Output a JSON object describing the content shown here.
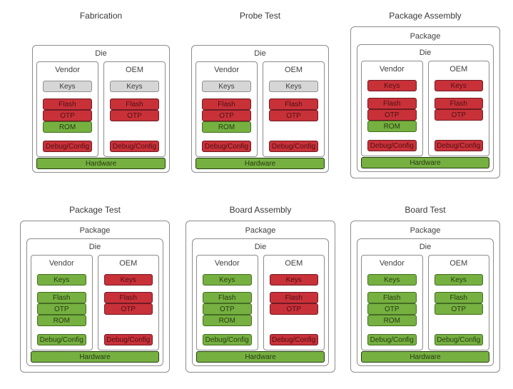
{
  "palette": {
    "red": "#c93139",
    "green": "#76b041",
    "gray": "#d6d6d6",
    "box_border": "#8c8c8c",
    "background": "#ffffff"
  },
  "diagrams": [
    {
      "title": "Fabrication",
      "die_label": "Die",
      "vendor": {
        "label": "Vendor",
        "cells": [
          {
            "key": "keys",
            "label": "Keys",
            "color": "gray"
          },
          {
            "key": "flash",
            "label": "Flash",
            "color": "red"
          },
          {
            "key": "otp",
            "label": "OTP",
            "color": "red"
          },
          {
            "key": "rom",
            "label": "ROM",
            "color": "green"
          },
          {
            "key": "debug",
            "label": "Debug/Config",
            "color": "red"
          }
        ]
      },
      "oem": {
        "label": "OEM",
        "cells": [
          {
            "key": "keys",
            "label": "Keys",
            "color": "gray"
          },
          {
            "key": "flash",
            "label": "Flash",
            "color": "red"
          },
          {
            "key": "otp",
            "label": "OTP",
            "color": "red"
          },
          {
            "key": "debug",
            "label": "Debug/Config",
            "color": "red"
          }
        ]
      },
      "hardware": {
        "label": "Hardware",
        "color": "green"
      }
    },
    {
      "title": "Probe Test",
      "die_label": "Die",
      "vendor": {
        "label": "Vendor",
        "cells": [
          {
            "key": "keys",
            "label": "Keys",
            "color": "gray"
          },
          {
            "key": "flash",
            "label": "Flash",
            "color": "red"
          },
          {
            "key": "otp",
            "label": "OTP",
            "color": "red"
          },
          {
            "key": "rom",
            "label": "ROM",
            "color": "green"
          },
          {
            "key": "debug",
            "label": "Debug/Config",
            "color": "red"
          }
        ]
      },
      "oem": {
        "label": "OEM",
        "cells": [
          {
            "key": "keys",
            "label": "Keys",
            "color": "gray"
          },
          {
            "key": "flash",
            "label": "Flash",
            "color": "red"
          },
          {
            "key": "otp",
            "label": "OTP",
            "color": "red"
          },
          {
            "key": "debug",
            "label": "Debug/Config",
            "color": "red"
          }
        ]
      },
      "hardware": {
        "label": "Hardware",
        "color": "green"
      }
    },
    {
      "title": "Package Assembly",
      "package_label": "Package",
      "die_label": "Die",
      "vendor": {
        "label": "Vendor",
        "cells": [
          {
            "key": "keys",
            "label": "Keys",
            "color": "red"
          },
          {
            "key": "flash",
            "label": "Flash",
            "color": "red"
          },
          {
            "key": "otp",
            "label": "OTP",
            "color": "red"
          },
          {
            "key": "rom",
            "label": "ROM",
            "color": "green"
          },
          {
            "key": "debug",
            "label": "Debug/Config",
            "color": "red"
          }
        ]
      },
      "oem": {
        "label": "OEM",
        "cells": [
          {
            "key": "keys",
            "label": "Keys",
            "color": "red"
          },
          {
            "key": "flash",
            "label": "Flash",
            "color": "red"
          },
          {
            "key": "otp",
            "label": "OTP",
            "color": "red"
          },
          {
            "key": "debug",
            "label": "Debug/Config",
            "color": "red"
          }
        ]
      },
      "hardware": {
        "label": "Hardware",
        "color": "green"
      }
    },
    {
      "title": "Package Test",
      "package_label": "Package",
      "die_label": "Die",
      "vendor": {
        "label": "Vendor",
        "cells": [
          {
            "key": "keys",
            "label": "Keys",
            "color": "green"
          },
          {
            "key": "flash",
            "label": "Flash",
            "color": "green"
          },
          {
            "key": "otp",
            "label": "OTP",
            "color": "green"
          },
          {
            "key": "rom",
            "label": "ROM",
            "color": "green"
          },
          {
            "key": "debug",
            "label": "Debug/Config",
            "color": "green"
          }
        ]
      },
      "oem": {
        "label": "OEM",
        "cells": [
          {
            "key": "keys",
            "label": "Keys",
            "color": "red"
          },
          {
            "key": "flash",
            "label": "Flash",
            "color": "red"
          },
          {
            "key": "otp",
            "label": "OTP",
            "color": "red"
          },
          {
            "key": "debug",
            "label": "Debug/Config",
            "color": "red"
          }
        ]
      },
      "hardware": {
        "label": "Hardware",
        "color": "green"
      }
    },
    {
      "title": "Board Assembly",
      "package_label": "Package",
      "die_label": "Die",
      "vendor": {
        "label": "Vendor",
        "cells": [
          {
            "key": "keys",
            "label": "Keys",
            "color": "green"
          },
          {
            "key": "flash",
            "label": "Flash",
            "color": "green"
          },
          {
            "key": "otp",
            "label": "OTP",
            "color": "green"
          },
          {
            "key": "rom",
            "label": "ROM",
            "color": "green"
          },
          {
            "key": "debug",
            "label": "Debug/Config",
            "color": "green"
          }
        ]
      },
      "oem": {
        "label": "OEM",
        "cells": [
          {
            "key": "keys",
            "label": "Keys",
            "color": "red"
          },
          {
            "key": "flash",
            "label": "Flash",
            "color": "red"
          },
          {
            "key": "otp",
            "label": "OTP",
            "color": "red"
          },
          {
            "key": "debug",
            "label": "Debug/Config",
            "color": "red"
          }
        ]
      },
      "hardware": {
        "label": "Hardware",
        "color": "green"
      }
    },
    {
      "title": "Board Test",
      "package_label": "Package",
      "die_label": "Die",
      "vendor": {
        "label": "Vendor",
        "cells": [
          {
            "key": "keys",
            "label": "Keys",
            "color": "green"
          },
          {
            "key": "flash",
            "label": "Flash",
            "color": "green"
          },
          {
            "key": "otp",
            "label": "OTP",
            "color": "green"
          },
          {
            "key": "rom",
            "label": "ROM",
            "color": "green"
          },
          {
            "key": "debug",
            "label": "Debug/Config",
            "color": "green"
          }
        ]
      },
      "oem": {
        "label": "OEM",
        "cells": [
          {
            "key": "keys",
            "label": "Keys",
            "color": "green"
          },
          {
            "key": "flash",
            "label": "Flash",
            "color": "green"
          },
          {
            "key": "otp",
            "label": "OTP",
            "color": "green"
          },
          {
            "key": "debug",
            "label": "Debug/Config",
            "color": "green"
          }
        ]
      },
      "hardware": {
        "label": "Hardware",
        "color": "green"
      }
    }
  ]
}
